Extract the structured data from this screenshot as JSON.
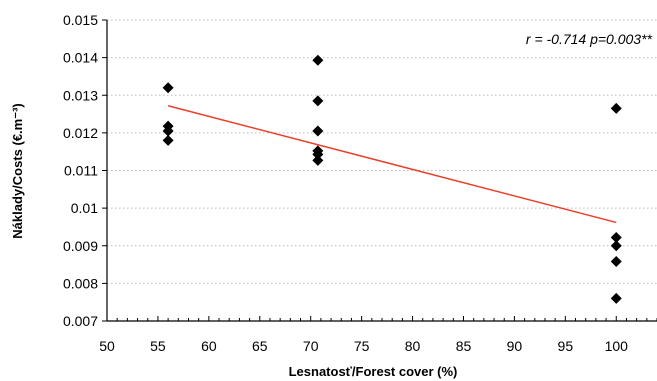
{
  "chart_data": {
    "type": "scatter",
    "title": "",
    "xlabel": "Lesnatosť/Forest cover (%)",
    "ylabel": "Náklady/Costs (€.m⁻³)",
    "xlim": [
      50,
      104
    ],
    "ylim": [
      0.007,
      0.015
    ],
    "x_ticks": [
      50,
      55,
      60,
      65,
      70,
      75,
      80,
      85,
      90,
      95,
      100
    ],
    "x_tick_labels": [
      "50",
      "55",
      "60",
      "65",
      "70",
      "75",
      "80",
      "85",
      "90",
      "95",
      "100"
    ],
    "y_ticks": [
      0.007,
      0.008,
      0.009,
      0.01,
      0.011,
      0.012,
      0.013,
      0.014,
      0.015
    ],
    "y_tick_labels": [
      "0.007",
      "0.008",
      "0.009",
      "0.01",
      "0.011",
      "0.012",
      "0.013",
      "0.014",
      "0.015"
    ],
    "grid": "horizontal dotted",
    "points": [
      {
        "x": 56,
        "y": 0.0132
      },
      {
        "x": 56,
        "y": 0.01218
      },
      {
        "x": 56,
        "y": 0.01205
      },
      {
        "x": 56,
        "y": 0.0118
      },
      {
        "x": 70.7,
        "y": 0.01393
      },
      {
        "x": 70.7,
        "y": 0.01285
      },
      {
        "x": 70.7,
        "y": 0.01205
      },
      {
        "x": 70.7,
        "y": 0.01152
      },
      {
        "x": 70.7,
        "y": 0.01143
      },
      {
        "x": 70.7,
        "y": 0.01127
      },
      {
        "x": 100,
        "y": 0.01265
      },
      {
        "x": 100,
        "y": 0.00922
      },
      {
        "x": 100,
        "y": 0.009
      },
      {
        "x": 100,
        "y": 0.00858
      },
      {
        "x": 100,
        "y": 0.0076
      }
    ],
    "trendline": {
      "x": [
        56,
        100
      ],
      "y": [
        0.01272,
        0.00962
      ]
    },
    "annotation": "r = -0.714  p=0.003**",
    "colors": {
      "marker": "#000000",
      "trendline": "#e8402a",
      "grid": "#bdbdbd"
    }
  }
}
